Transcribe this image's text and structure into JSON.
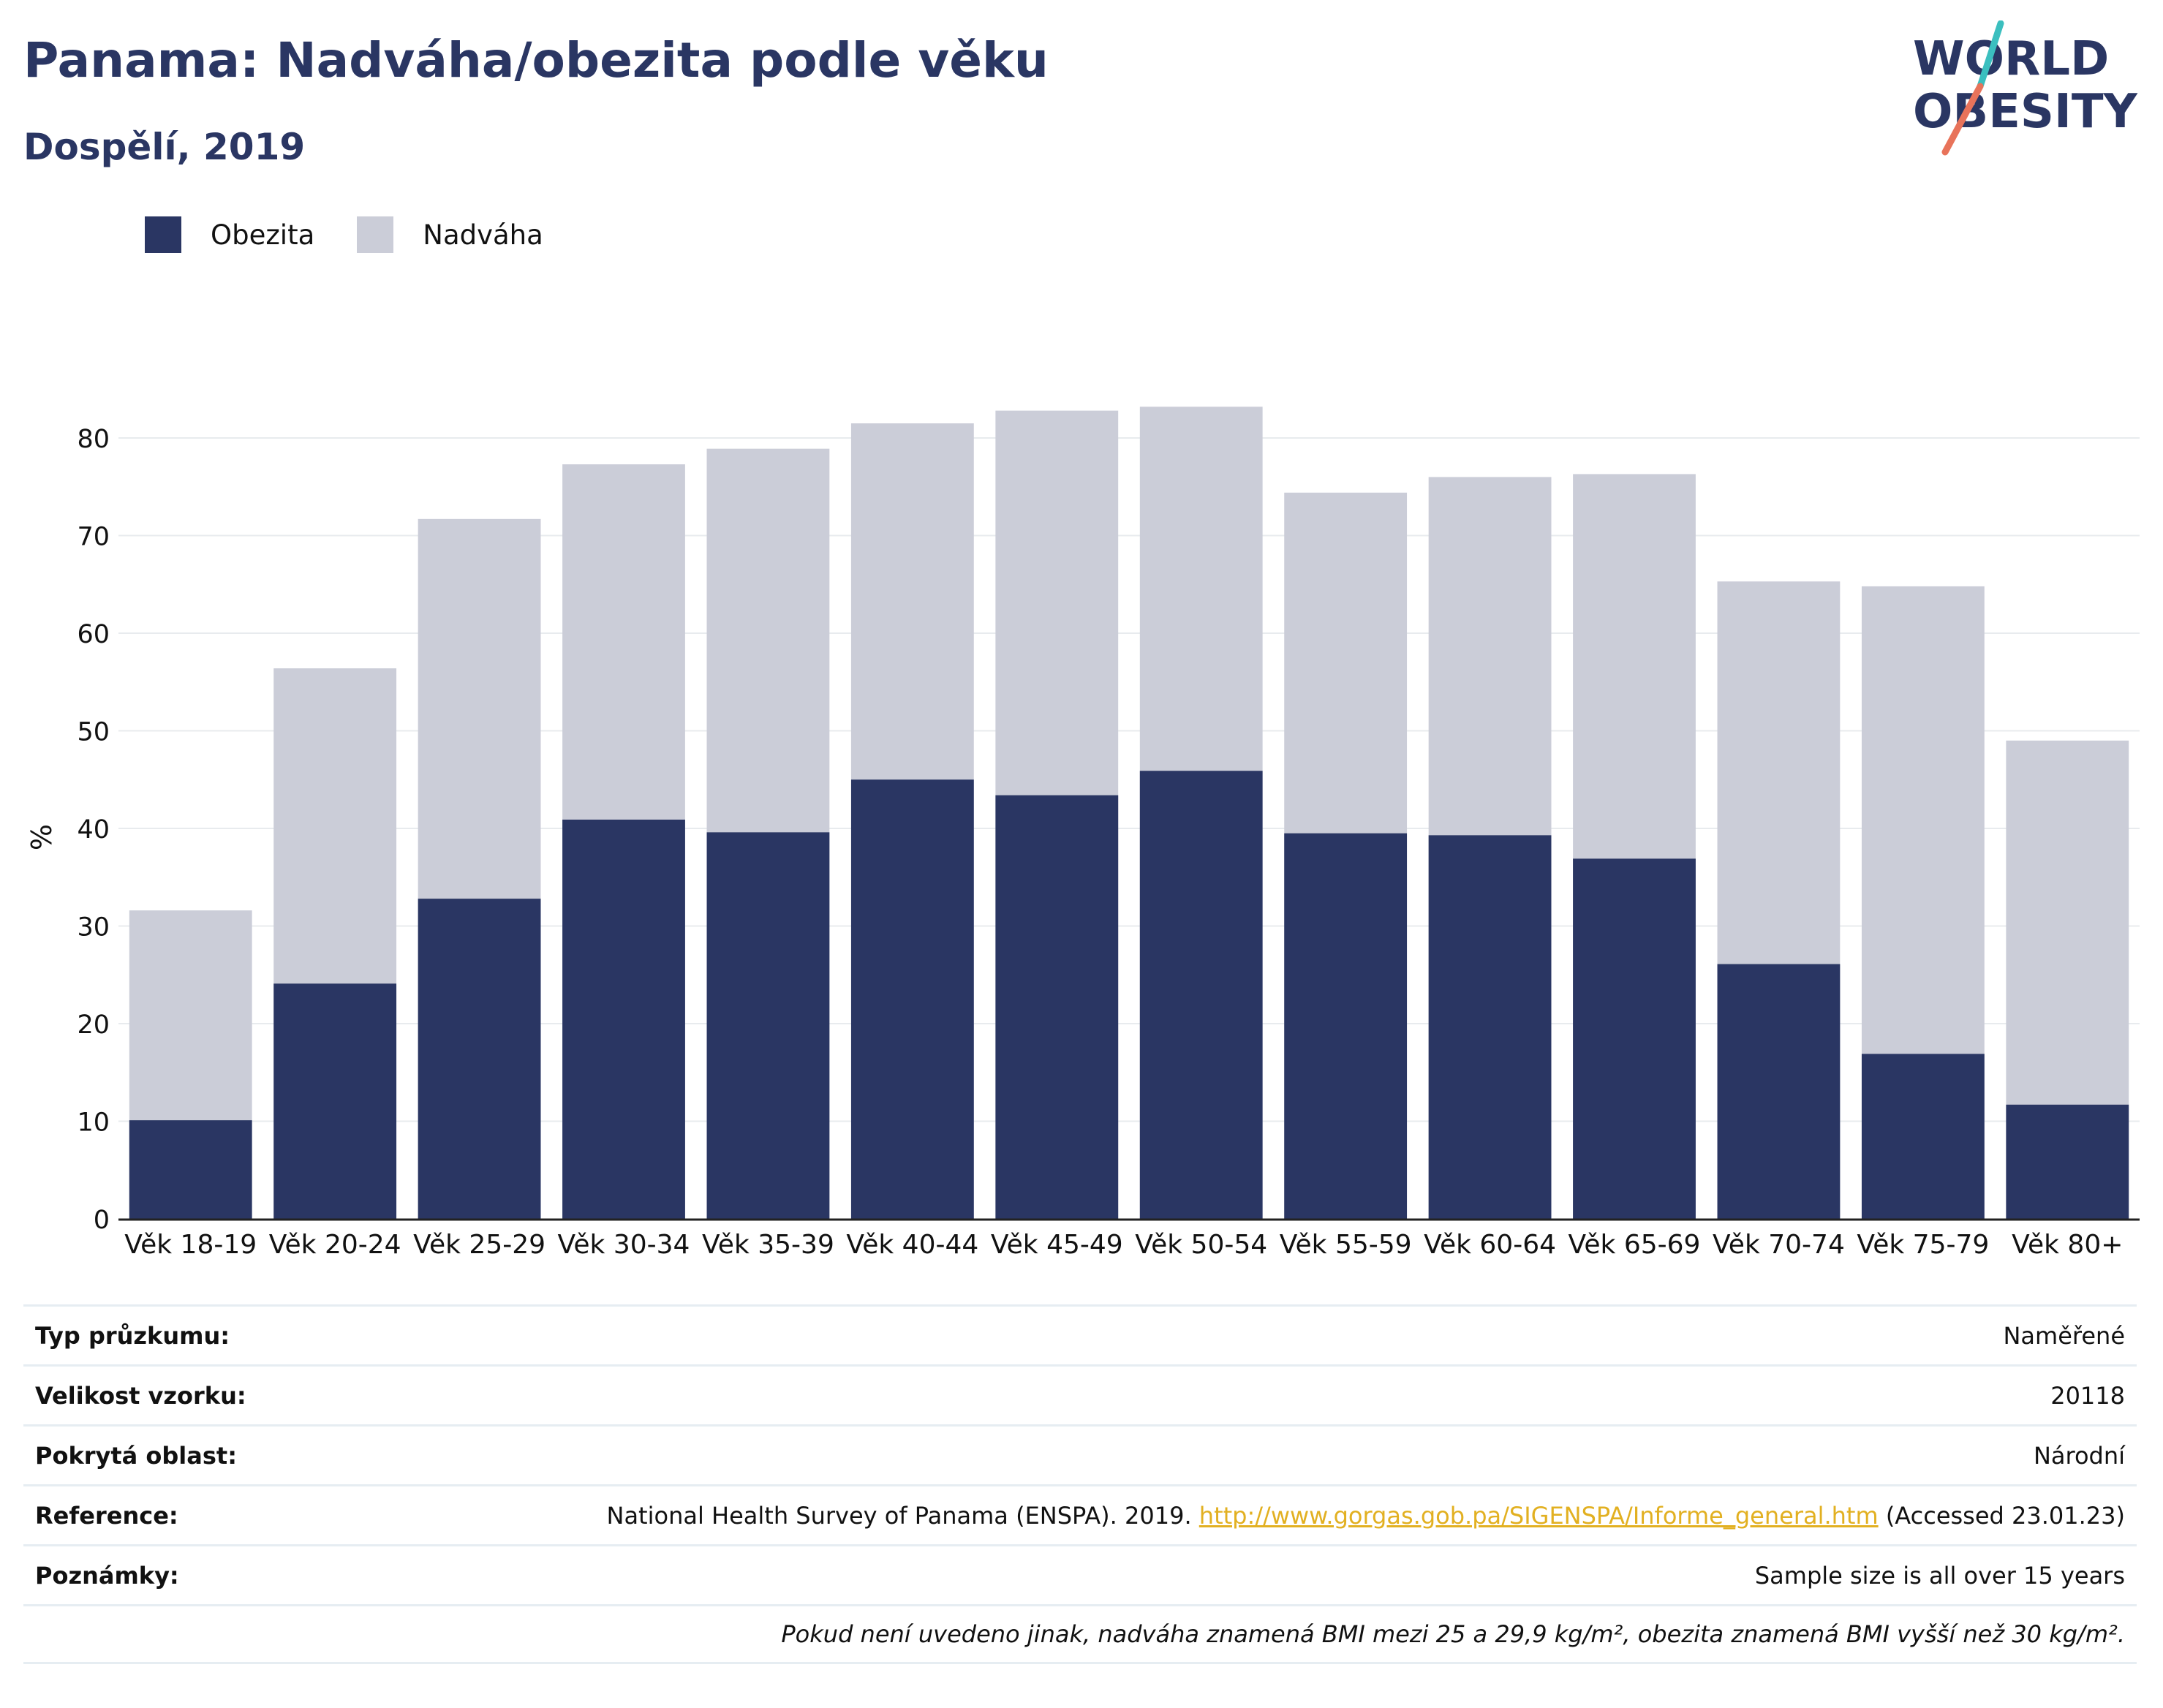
{
  "header": {
    "title": "Panama: Nadváha/obezita podle věku",
    "subtitle": "Dospělí, 2019"
  },
  "logo": {
    "line1": "WORLD",
    "line2": "OBESITY",
    "text_color": "#2a3663",
    "accent_colors": [
      "#3bbfbf",
      "#e8735a"
    ]
  },
  "legend": [
    {
      "label": "Obezita",
      "color": "#2a3663"
    },
    {
      "label": "Nadváha",
      "color": "#cbcdd8"
    }
  ],
  "chart_data": {
    "type": "bar",
    "stacked": false,
    "overlaid": true,
    "categories": [
      "Věk 18-19",
      "Věk 20-24",
      "Věk 25-29",
      "Věk 30-34",
      "Věk 35-39",
      "Věk 40-44",
      "Věk 45-49",
      "Věk 50-54",
      "Věk 55-59",
      "Věk 60-64",
      "Věk 65-69",
      "Věk 70-74",
      "Věk 75-79",
      "Věk 80+"
    ],
    "series": [
      {
        "name": "Nadváha",
        "color": "#cbcdd8",
        "values": [
          31.6,
          56.4,
          71.7,
          77.3,
          78.9,
          81.5,
          82.8,
          83.2,
          74.4,
          76.0,
          76.3,
          65.3,
          64.8,
          49.0
        ]
      },
      {
        "name": "Obezita",
        "color": "#2a3663",
        "values": [
          10.1,
          24.1,
          32.8,
          40.9,
          39.6,
          45.0,
          43.4,
          45.9,
          39.5,
          39.3,
          36.9,
          26.1,
          16.9,
          11.7
        ]
      }
    ],
    "ylabel": "%",
    "ylim": [
      0,
      85
    ],
    "yticks": [
      0,
      10,
      20,
      30,
      40,
      50,
      60,
      70,
      80
    ],
    "grid": true,
    "legend_position": "top-left"
  },
  "info": {
    "survey_type": {
      "label": "Typ průzkumu:",
      "value": "Naměřené"
    },
    "sample_size": {
      "label": "Velikost vzorku:",
      "value": "20118"
    },
    "coverage": {
      "label": "Pokrytá oblast:",
      "value": "Národní"
    },
    "reference": {
      "label": "Reference:",
      "text_before": "National Health Survey of Panama (ENSPA). 2019.",
      "link": "http://www.gorgas.gob.pa/SIGENSPA/Informe_general.htm",
      "text_after": "(Accessed 23.01.23)"
    },
    "notes": {
      "label": "Poznámky:",
      "value": "Sample size is all over 15 years"
    },
    "footnote": "Pokud není uvedeno jinak, nadváha znamená BMI mezi 25 a 29,9 kg/m², obezita znamená BMI vyšší než 30 kg/m²."
  }
}
